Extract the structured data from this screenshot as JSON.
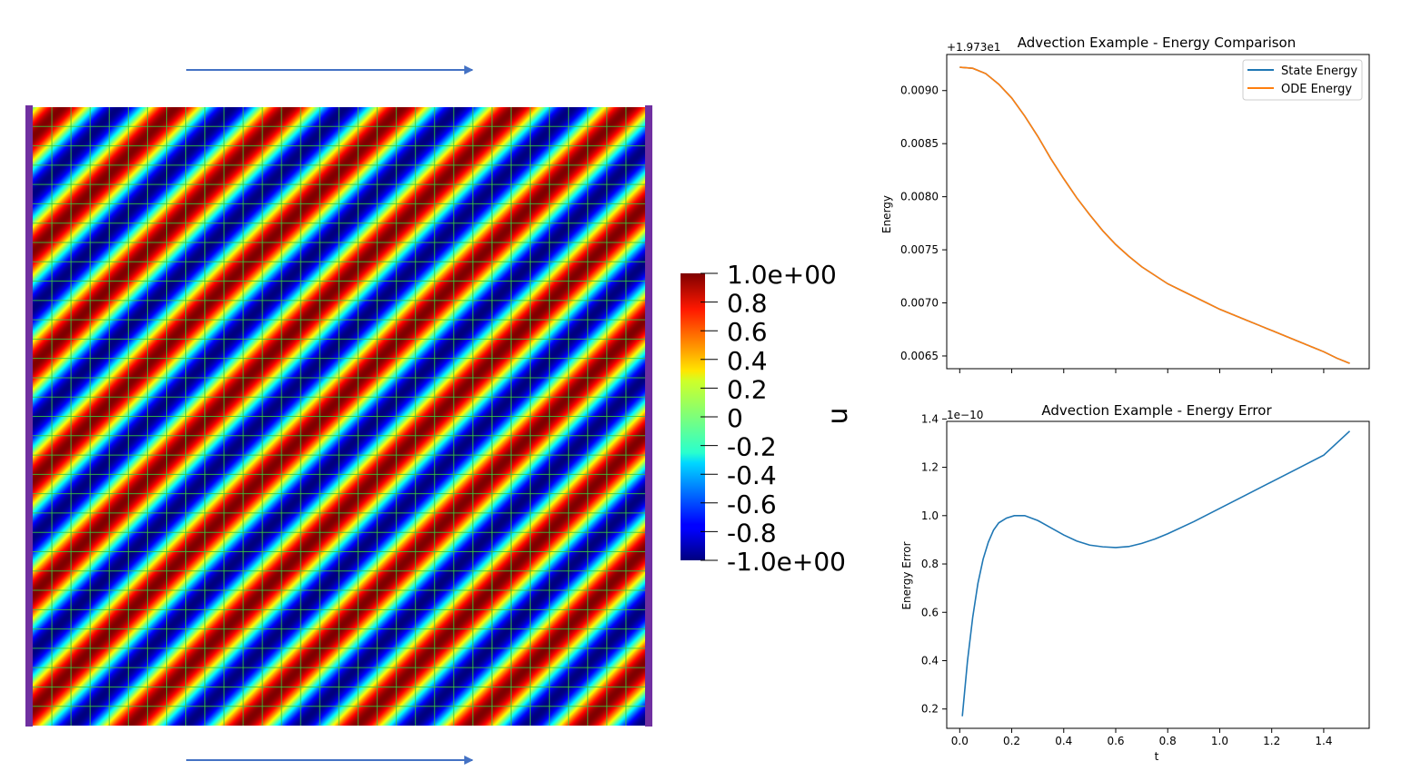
{
  "field": {
    "arrow_color": "#4472c4",
    "boundary_color": "#7030a0",
    "grid_color": "#39c83c",
    "wave_count_diagonal": 12
  },
  "colorbar": {
    "title": "u",
    "tick_labels": [
      "1.0e+00",
      "0.8",
      "0.6",
      "0.4",
      "0.2",
      "0",
      "-0.2",
      "-0.4",
      "-0.6",
      "-0.8",
      "-1.0e+00"
    ],
    "tick_values": [
      1.0,
      0.8,
      0.6,
      0.4,
      0.2,
      0.0,
      -0.2,
      -0.4,
      -0.6,
      -0.8,
      -1.0
    ],
    "range": [
      -1.0,
      1.0
    ],
    "colormap": "jet"
  },
  "chart_data": [
    {
      "type": "line",
      "title": "Advection Example - Energy Comparison",
      "xlabel": "",
      "ylabel": "Energy",
      "offset_label": "+1.973e1",
      "xlim": [
        -0.05,
        1.575
      ],
      "ylim": [
        0.00638,
        0.00934
      ],
      "xticks": [
        0.0,
        0.2,
        0.4,
        0.6,
        0.8,
        1.0,
        1.2,
        1.4
      ],
      "show_xtick_labels": false,
      "yticks": [
        0.0065,
        0.007,
        0.0075,
        0.008,
        0.0085,
        0.009
      ],
      "ytick_labels": [
        "0.0065",
        "0.0070",
        "0.0075",
        "0.0080",
        "0.0085",
        "0.0090"
      ],
      "grid": false,
      "legend_position": "top-right",
      "x": [
        0.0,
        0.05,
        0.1,
        0.15,
        0.2,
        0.25,
        0.3,
        0.35,
        0.4,
        0.45,
        0.5,
        0.55,
        0.6,
        0.65,
        0.7,
        0.75,
        0.8,
        0.85,
        0.9,
        0.95,
        1.0,
        1.05,
        1.1,
        1.15,
        1.2,
        1.25,
        1.3,
        1.35,
        1.4,
        1.45,
        1.5
      ],
      "series": [
        {
          "name": "State Energy",
          "color": "#1f77b4",
          "values": [
            0.00922,
            0.00921,
            0.00916,
            0.00906,
            0.00893,
            0.00876,
            0.00857,
            0.00836,
            0.00817,
            0.00799,
            0.00783,
            0.00768,
            0.00755,
            0.00744,
            0.00734,
            0.00726,
            0.00718,
            0.00712,
            0.00706,
            0.007,
            0.00694,
            0.00689,
            0.00684,
            0.00679,
            0.00674,
            0.00669,
            0.00664,
            0.00659,
            0.00654,
            0.00648,
            0.00643
          ]
        },
        {
          "name": "ODE Energy",
          "color": "#ff7f0e",
          "values": [
            0.00922,
            0.00921,
            0.00916,
            0.00906,
            0.00893,
            0.00876,
            0.00857,
            0.00836,
            0.00817,
            0.00799,
            0.00783,
            0.00768,
            0.00755,
            0.00744,
            0.00734,
            0.00726,
            0.00718,
            0.00712,
            0.00706,
            0.007,
            0.00694,
            0.00689,
            0.00684,
            0.00679,
            0.00674,
            0.00669,
            0.00664,
            0.00659,
            0.00654,
            0.00648,
            0.00643
          ]
        }
      ]
    },
    {
      "type": "line",
      "title": "Advection Example - Energy Error",
      "xlabel": "t",
      "ylabel": "Energy Error",
      "offset_label": "1e−10",
      "xlim": [
        -0.05,
        1.575
      ],
      "ylim": [
        0.12,
        1.39
      ],
      "xticks": [
        0.0,
        0.2,
        0.4,
        0.6,
        0.8,
        1.0,
        1.2,
        1.4
      ],
      "xtick_labels": [
        "0.0",
        "0.2",
        "0.4",
        "0.6",
        "0.8",
        "1.0",
        "1.2",
        "1.4"
      ],
      "yticks": [
        0.2,
        0.4,
        0.6,
        0.8,
        1.0,
        1.2,
        1.4
      ],
      "ytick_labels": [
        "0.2",
        "0.4",
        "0.6",
        "0.8",
        "1.0",
        "1.2",
        "1.4"
      ],
      "grid": false,
      "series": [
        {
          "name": "",
          "color": "#1f77b4",
          "x": [
            0.01,
            0.03,
            0.05,
            0.07,
            0.09,
            0.11,
            0.13,
            0.15,
            0.18,
            0.21,
            0.25,
            0.3,
            0.35,
            0.4,
            0.45,
            0.5,
            0.55,
            0.6,
            0.65,
            0.7,
            0.75,
            0.8,
            0.9,
            1.0,
            1.1,
            1.2,
            1.3,
            1.4,
            1.5
          ],
          "values": [
            0.17,
            0.4,
            0.58,
            0.72,
            0.82,
            0.89,
            0.94,
            0.97,
            0.99,
            1.0,
            1.0,
            0.98,
            0.95,
            0.92,
            0.895,
            0.878,
            0.871,
            0.868,
            0.872,
            0.885,
            0.903,
            0.925,
            0.975,
            1.03,
            1.085,
            1.14,
            1.195,
            1.25,
            1.35
          ]
        }
      ]
    }
  ]
}
